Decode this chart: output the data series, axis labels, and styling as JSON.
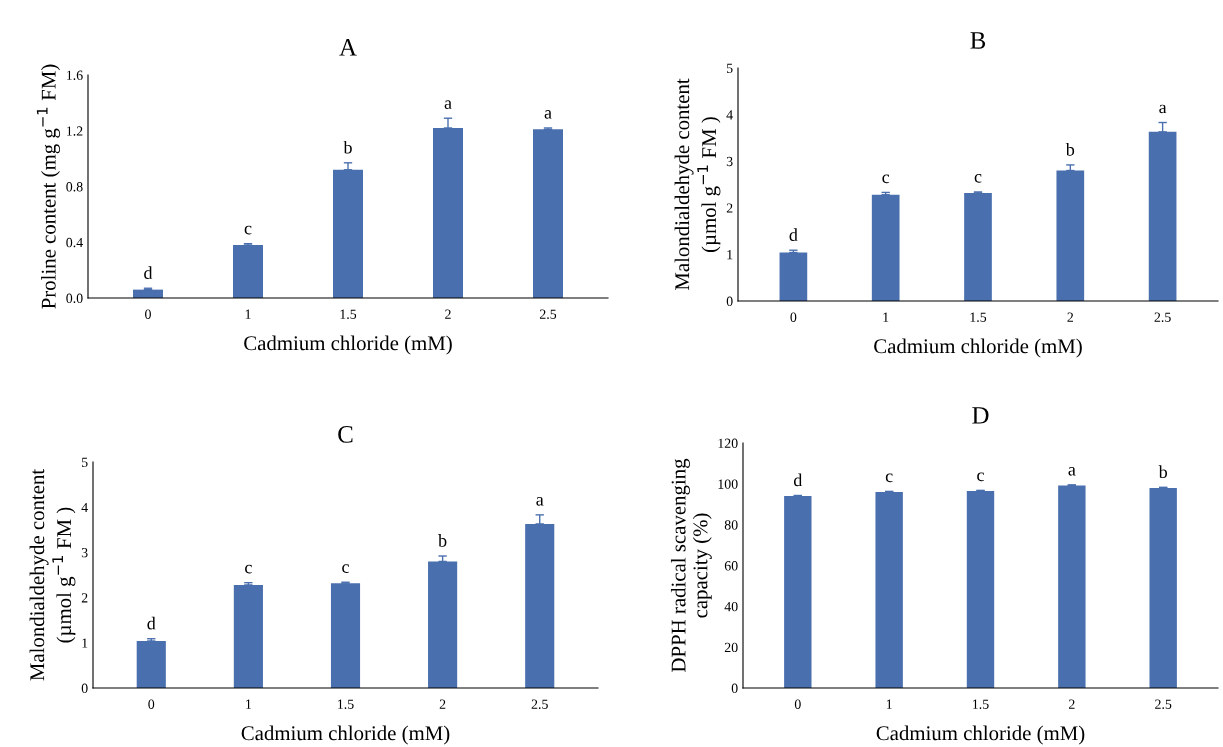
{
  "chart_data": [
    {
      "type": "bar",
      "title": "A",
      "xlabel": "Cadmium chloride (mM)",
      "ylabel": "Proline content (mg g$^{−1}$ FM)",
      "categories": [
        "0",
        "1",
        "1.5",
        "2",
        "2.5"
      ],
      "color": "#4a6fae",
      "values": [
        0.06,
        0.38,
        0.92,
        1.22,
        1.21
      ],
      "errors": [
        [
          0.06,
          0.07
        ],
        [
          0.38,
          0.39
        ],
        [
          0.92,
          0.97
        ],
        [
          1.22,
          1.29
        ],
        [
          1.21,
          1.22
        ]
      ],
      "ylim": [
        0,
        1.6
      ],
      "yticks": [
        {
          "value": 0,
          "label": "0.0"
        },
        {
          "value": 0.4,
          "label": "0.4"
        },
        {
          "value": 0.8,
          "label": "0.8"
        },
        {
          "value": 1.2,
          "label": "1.2"
        },
        {
          "value": 1.6,
          "label": "1.6"
        }
      ],
      "grid": false,
      "legend": false,
      "annotations": [
        {
          "text": "d",
          "x": "0",
          "y": 0.07
        },
        {
          "text": "c",
          "x": "1",
          "y": 0.39
        },
        {
          "text": "b",
          "x": "1.5",
          "y": 0.97
        },
        {
          "text": "a",
          "x": "2",
          "y": 1.29
        },
        {
          "text": "a",
          "x": "2.5",
          "y": 1.22
        }
      ]
    },
    {
      "type": "bar",
      "title": "B",
      "xlabel": "Cadmium chloride (mM)",
      "ylabel": "Malondialdehyde content\n(µmol g$^{−1}$ FM )",
      "categories": [
        "0",
        "1",
        "1.5",
        "2",
        "2.5"
      ],
      "color": "#4a6fae",
      "values": [
        1.04,
        2.28,
        2.32,
        2.8,
        3.63
      ],
      "errors": [
        [
          1.04,
          1.09
        ],
        [
          2.28,
          2.33
        ],
        [
          2.32,
          2.34
        ],
        [
          2.8,
          2.92
        ],
        [
          3.63,
          3.83
        ]
      ],
      "ylim": [
        0,
        5
      ],
      "yticks": [
        0,
        1,
        2,
        3,
        4,
        5
      ],
      "grid": false,
      "legend": false,
      "annotations": [
        {
          "text": "d",
          "x": "0",
          "y": 1.09
        },
        {
          "text": "c",
          "x": "1",
          "y": 2.33
        },
        {
          "text": "c",
          "x": "1.5",
          "y": 2.34
        },
        {
          "text": "b",
          "x": "2",
          "y": 2.92
        },
        {
          "text": "a",
          "x": "2.5",
          "y": 3.83
        }
      ]
    },
    {
      "type": "bar",
      "title": "C",
      "xlabel": "Cadmium chloride (mM)",
      "ylabel": "Malondialdehyde content\n(µmol g$^{−1}$ FM )",
      "categories": [
        "0",
        "1",
        "1.5",
        "2",
        "2.5"
      ],
      "color": "#4a6fae",
      "values": [
        1.04,
        2.28,
        2.32,
        2.8,
        3.63
      ],
      "errors": [
        [
          1.04,
          1.09
        ],
        [
          2.28,
          2.33
        ],
        [
          2.32,
          2.34
        ],
        [
          2.8,
          2.92
        ],
        [
          3.63,
          3.83
        ]
      ],
      "ylim": [
        0,
        5
      ],
      "yticks": [
        0,
        1,
        2,
        3,
        4,
        5
      ],
      "grid": false,
      "legend": false,
      "annotations": [
        {
          "text": "d",
          "x": "0",
          "y": 1.09
        },
        {
          "text": "c",
          "x": "1",
          "y": 2.33
        },
        {
          "text": "c",
          "x": "1.5",
          "y": 2.34
        },
        {
          "text": "b",
          "x": "2",
          "y": 2.92
        },
        {
          "text": "a",
          "x": "2.5",
          "y": 3.83
        }
      ]
    },
    {
      "type": "bar",
      "title": "D",
      "xlabel": "Cadmium chloride (mM)",
      "ylabel": "DPPH radical scavenging\ncapacity (%)",
      "categories": [
        "0",
        "1",
        "1.5",
        "2",
        "2.5"
      ],
      "color": "#4a6fae",
      "values": [
        94,
        96,
        96.5,
        99.2,
        98
      ],
      "errors": [
        [
          94,
          94.3
        ],
        [
          96,
          96.3
        ],
        [
          96.5,
          96.8
        ],
        [
          99.2,
          99.5
        ],
        [
          98,
          98.3
        ]
      ],
      "ylim": [
        0,
        120
      ],
      "yticks": [
        0,
        20,
        40,
        60,
        80,
        100,
        120
      ],
      "grid": false,
      "legend": false,
      "annotations": [
        {
          "text": "d",
          "x": "0",
          "y": 94.3
        },
        {
          "text": "c",
          "x": "1",
          "y": 96.3
        },
        {
          "text": "c",
          "x": "1.5",
          "y": 96.8
        },
        {
          "text": "a",
          "x": "2",
          "y": 99.5
        },
        {
          "text": "b",
          "x": "2.5",
          "y": 98.3
        }
      ]
    }
  ]
}
